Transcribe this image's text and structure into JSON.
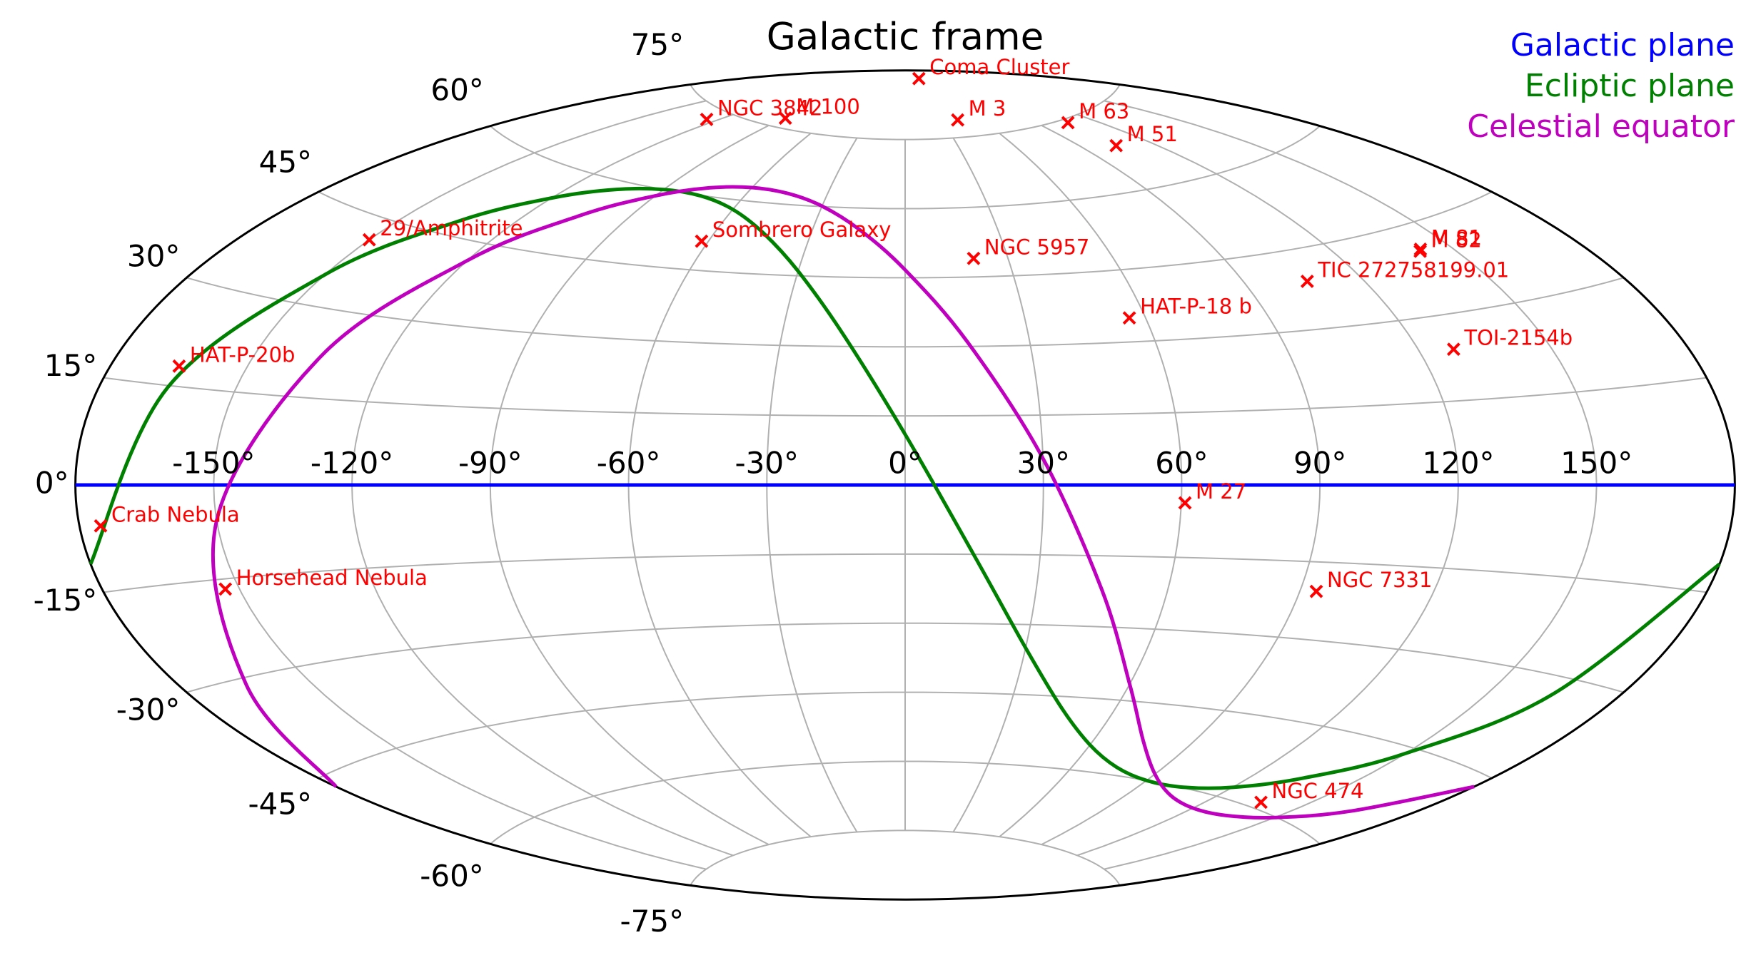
{
  "chart_data": {
    "type": "scatter",
    "projection": "aitoff",
    "title": "Galactic frame",
    "xlim": [
      -180,
      180
    ],
    "ylim": [
      -90,
      90
    ],
    "xticks": [
      {
        "value": -150,
        "label": "-150°"
      },
      {
        "value": -120,
        "label": "-120°"
      },
      {
        "value": -90,
        "label": "-90°"
      },
      {
        "value": -60,
        "label": "-60°"
      },
      {
        "value": -30,
        "label": "-30°"
      },
      {
        "value": 0,
        "label": "0°"
      },
      {
        "value": 30,
        "label": "30°"
      },
      {
        "value": 60,
        "label": "60°"
      },
      {
        "value": 90,
        "label": "90°"
      },
      {
        "value": 120,
        "label": "120°"
      },
      {
        "value": 150,
        "label": "150°"
      }
    ],
    "yticks": [
      {
        "value": -75,
        "label": "-75°"
      },
      {
        "value": -60,
        "label": "-60°"
      },
      {
        "value": -45,
        "label": "-45°"
      },
      {
        "value": -30,
        "label": "-30°"
      },
      {
        "value": -15,
        "label": "-15°"
      },
      {
        "value": 0,
        "label": "0°"
      },
      {
        "value": 15,
        "label": "15°"
      },
      {
        "value": 30,
        "label": "30°"
      },
      {
        "value": 45,
        "label": "45°"
      },
      {
        "value": 60,
        "label": "60°"
      },
      {
        "value": 75,
        "label": "75°"
      }
    ],
    "grid": true,
    "legend": "upper right",
    "series": [
      {
        "name": "Galactic plane",
        "color": "#0000ff",
        "x": [
          -180,
          180
        ],
        "y": [
          0,
          0
        ]
      },
      {
        "name": "Ecliptic plane",
        "color": "#008000",
        "x": [
          -180,
          -165,
          -150,
          -135,
          -120,
          -105,
          -90,
          -75,
          -60,
          -45,
          -30,
          -15,
          0,
          15,
          30,
          45,
          60,
          75,
          90,
          105,
          120,
          135,
          150,
          165,
          180
        ],
        "y": [
          -11.0,
          14.7,
          35.0,
          47.5,
          54.6,
          58.4,
          60.0,
          59.9,
          58.0,
          53.7,
          46.0,
          32.5,
          11.0,
          -14.7,
          -35.0,
          -47.5,
          -54.6,
          -58.4,
          -60.0,
          -59.9,
          -58.0,
          -53.7,
          -46.0,
          -32.5,
          -11.0
        ]
      },
      {
        "name": "Celestial equator",
        "color": "#bf00bf",
        "x": [
          -180,
          -165,
          -150,
          -135,
          -120,
          -105,
          -90,
          -75,
          -60,
          -45,
          -30,
          -15,
          0,
          15,
          30,
          45,
          60,
          75,
          90,
          105,
          120,
          135,
          150,
          165,
          180
        ],
        "y": [
          -46.7,
          -31.0,
          -5.7,
          22.2,
          41.6,
          52.6,
          58.6,
          61.7,
          62.8,
          62.3,
          60.1,
          55.4,
          46.7,
          31.0,
          5.7,
          -22.2,
          -41.6,
          -52.6,
          -58.6,
          -61.7,
          -62.8,
          -62.3,
          -60.1,
          -55.4,
          -46.7
        ]
      }
    ],
    "objects": {
      "color": "#ff0000",
      "marker": "x",
      "labels": [
        "Coma Cluster",
        "NGC 3842",
        "M 100",
        "M 3",
        "M 63",
        "M 51",
        "29/Amphitrite",
        "Sombrero Galaxy",
        "NGC 5957",
        "M 81",
        "M 82",
        "TIC 272758199.01",
        "HAT-P-18 b",
        "TOI-2154b",
        "HAT-P-20b",
        "M 27",
        "Crab Nebula",
        "Horsehead Nebula",
        "NGC 7331",
        "NGC 474"
      ],
      "x": [
        58,
        -125,
        -89,
        42.2,
        106,
        104.9,
        -150,
        -62,
        20,
        142.1,
        141.4,
        106,
        56,
        128,
        -165,
        60.8,
        -175.4,
        -153.1,
        93.7,
        136.5
      ],
      "y": [
        88,
        73,
        76.9,
        78.7,
        74.3,
        68.6,
        41.5,
        51,
        49,
        40.9,
        40.6,
        39,
        35,
        24,
        18,
        -3.7,
        -5.8,
        -16.6,
        -20.7,
        -58.9
      ]
    }
  }
}
